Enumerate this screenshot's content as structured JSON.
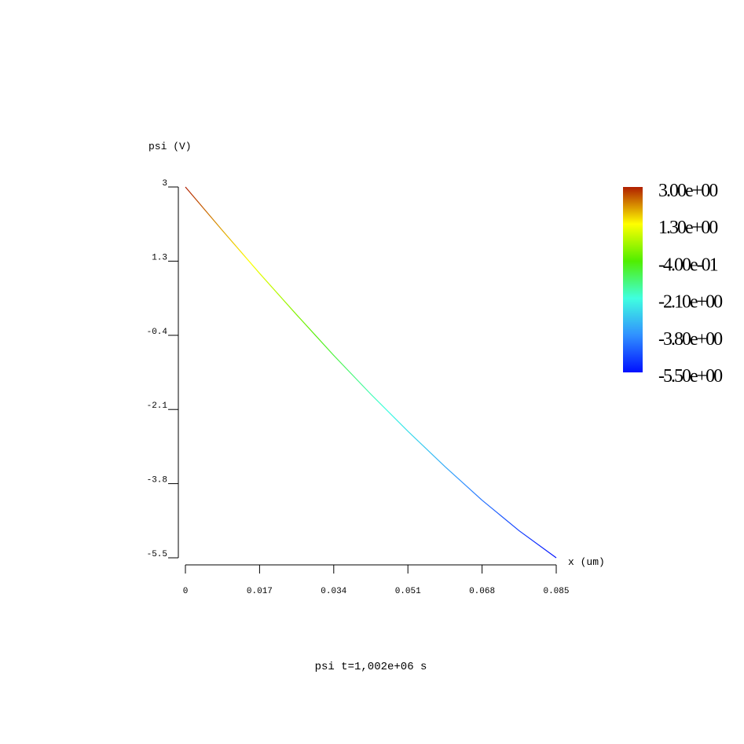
{
  "chart_data": {
    "type": "line",
    "title": "psi t=1,002e+06 s",
    "y_label": "psi (V)",
    "x_label": "x (um)",
    "x": [
      0,
      0.0085,
      0.017,
      0.0255,
      0.034,
      0.0425,
      0.051,
      0.0595,
      0.068,
      0.0765,
      0.085
    ],
    "series": [
      {
        "name": "psi",
        "values": [
          3,
          2.0,
          1.02,
          0.07,
          -0.86,
          -1.75,
          -2.6,
          -3.41,
          -4.18,
          -4.88,
          -5.5
        ]
      }
    ],
    "xlim": [
      0,
      0.085
    ],
    "xticks": [
      0,
      0.017,
      0.034,
      0.051,
      0.068,
      0.085
    ],
    "ylim": [
      -5.5,
      3
    ],
    "yticks": [
      3,
      1.3,
      -0.4,
      -2.1,
      -3.8,
      -5.5
    ],
    "colorbar": {
      "lim": [
        -5.5,
        3
      ],
      "ticks": [
        {
          "value": 3,
          "label": "3.00e+00"
        },
        {
          "value": 1.3,
          "label": "1.30e+00"
        },
        {
          "value": -0.4,
          "label": "-4.00e-01"
        },
        {
          "value": -2.1,
          "label": "-2.10e+00"
        },
        {
          "value": -3.8,
          "label": "-3.80e+00"
        },
        {
          "value": -5.5,
          "label": "-5.50e+00"
        }
      ],
      "colors": [
        "#b01e00",
        "#ffff00",
        "#50ee00",
        "#40ffe0",
        "#3090ff",
        "#0010ff"
      ]
    }
  }
}
